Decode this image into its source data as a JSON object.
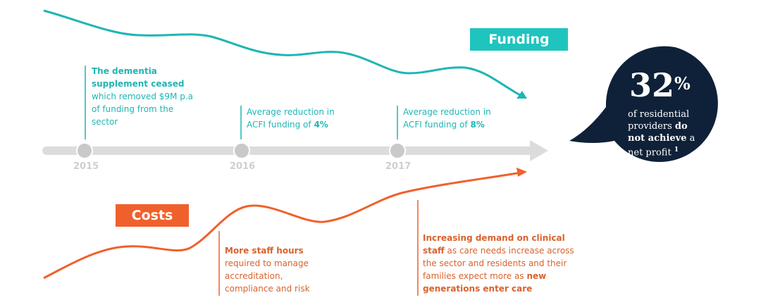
{
  "funding_label": "Funding",
  "costs_label": "Costs",
  "years": [
    "2015",
    "2016",
    "2017"
  ],
  "funding_notes": [
    {
      "bold": "The dementia supplement ceased",
      "rest": " which removed $9M p.a of funding from the sector"
    },
    {
      "pre": "Average reduction in ACFI funding of ",
      "bold": "4%"
    },
    {
      "pre": "Average reduction in ACFI funding of ",
      "bold": "8%"
    }
  ],
  "cost_notes": [
    {
      "bold": "More staff hours",
      "rest": " required to manage accreditation, compliance and risk"
    },
    {
      "bold": "Increasing demand on clinical staff",
      "rest": " as care needs increase across the sector and residents and their families expect more as ",
      "bold2": "new generations enter care"
    }
  ],
  "stat": {
    "number": "32",
    "unit": "%",
    "line1": "of residential",
    "line2_pre": "providers ",
    "line2_bold": "do",
    "line3_bold": "not achieve",
    "line3_post": " a",
    "line4": "net profit",
    "footnote": "1"
  },
  "colors": {
    "teal": "#1fb5b5",
    "orange": "#f0602c",
    "navy": "#0f2138",
    "timeline": "#dcdcdc"
  }
}
